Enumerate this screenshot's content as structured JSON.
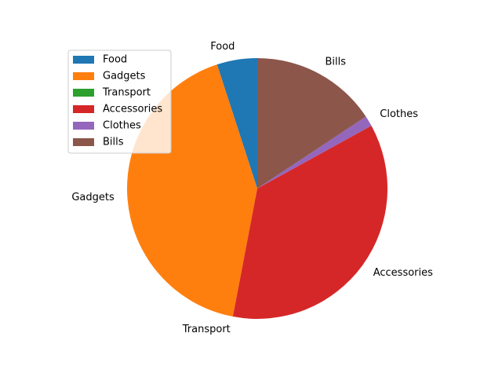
{
  "chart_data": {
    "type": "pie",
    "categories": [
      "Food",
      "Gadgets",
      "Transport",
      "Accessories",
      "Clothes",
      "Bills"
    ],
    "values": [
      5.0,
      42.0,
      0.0,
      36.0,
      1.3,
      15.7
    ],
    "colors": [
      "#1f77b4",
      "#ff7f0e",
      "#2ca02c",
      "#d62728",
      "#9467bd",
      "#8c564b"
    ],
    "start_angle_deg": 90,
    "direction": "counterclockwise",
    "legend": {
      "placement": "upper-left",
      "entries": [
        "Food",
        "Gadgets",
        "Transport",
        "Accessories",
        "Clothes",
        "Bills"
      ]
    }
  }
}
